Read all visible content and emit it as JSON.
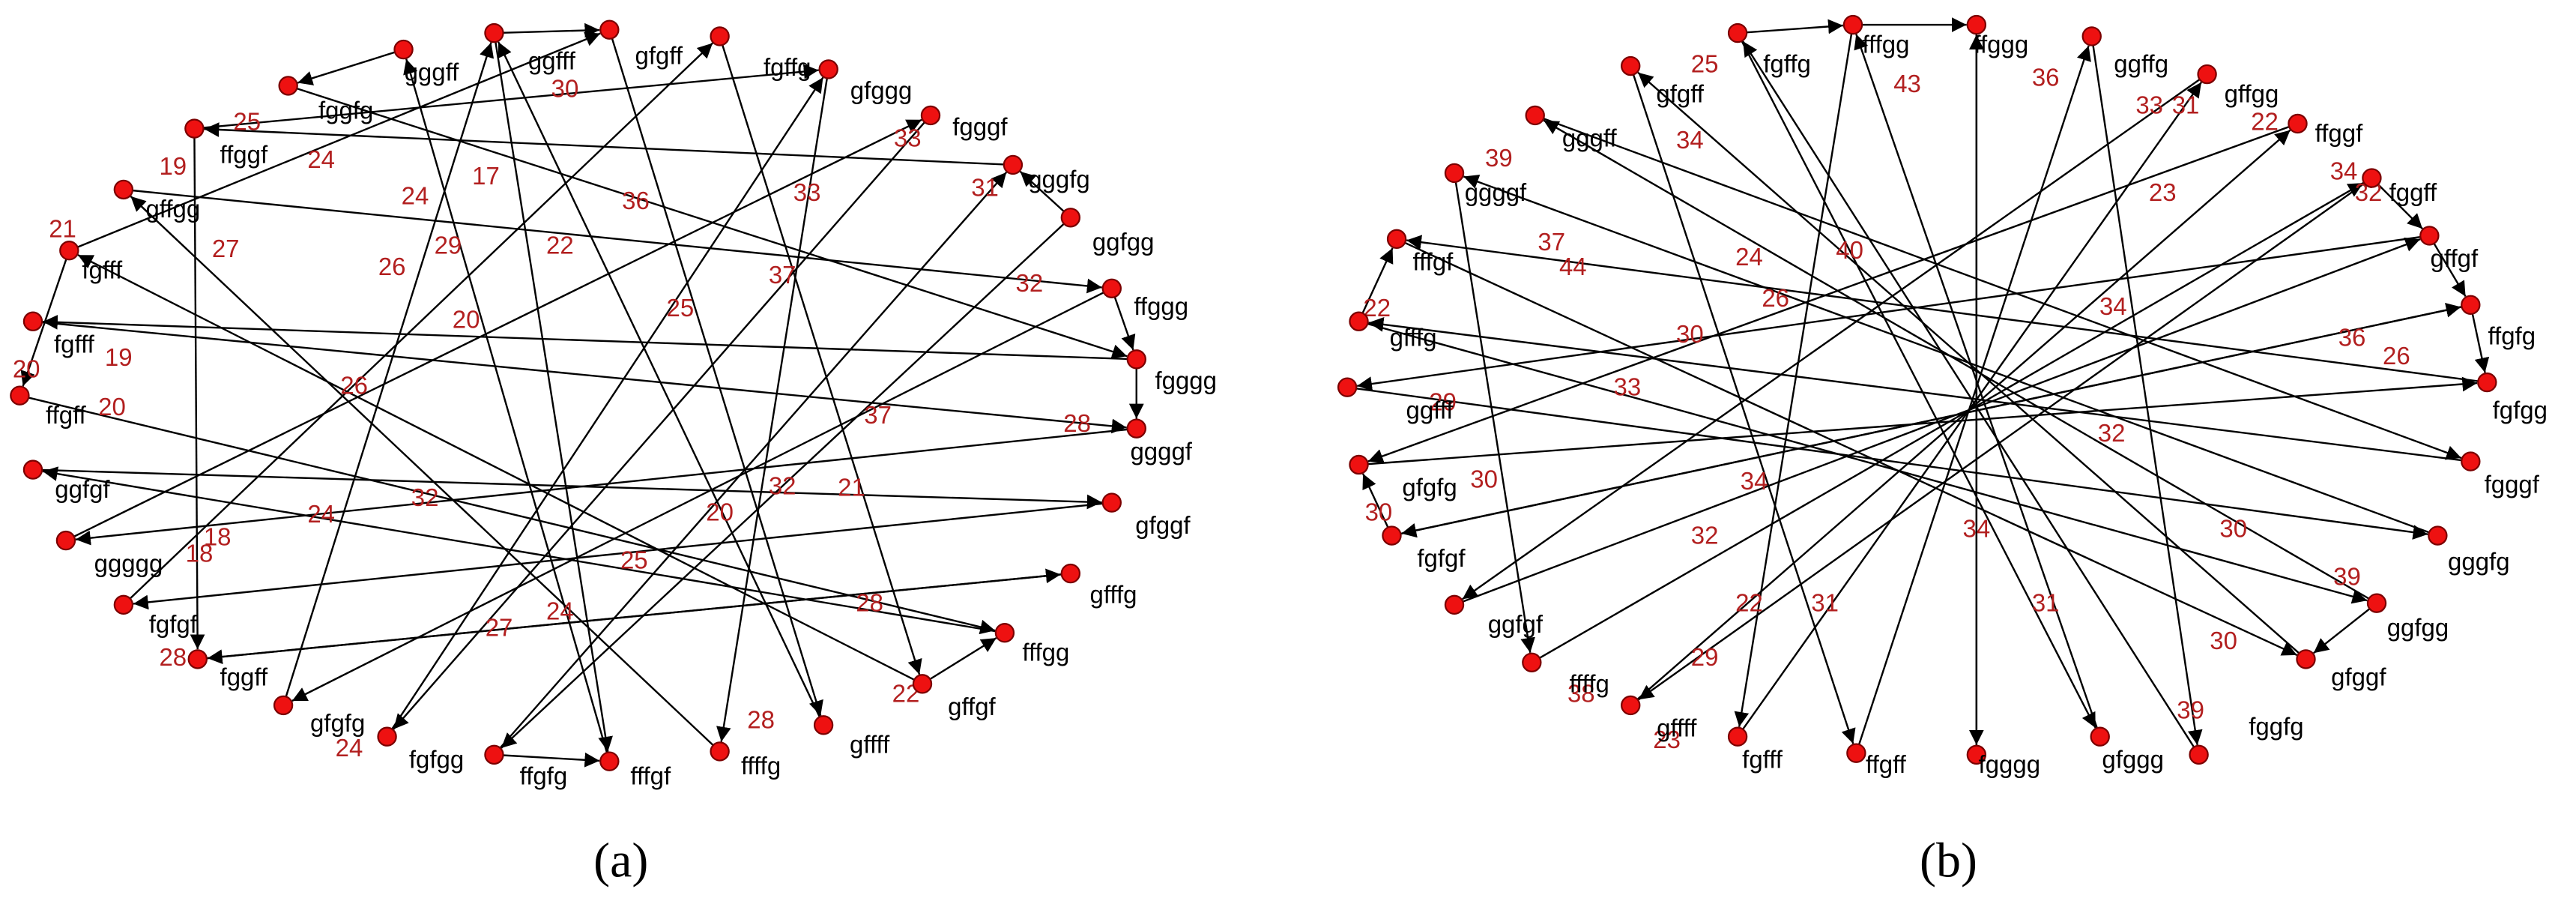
{
  "panels": [
    {
      "caption": "(a)",
      "nodes": [
        "fggfg",
        "ffggf",
        "gffgg",
        "fgfff",
        "fgfff",
        "ffgff",
        "ggfgf",
        "ggggg",
        "fgfgf",
        "fggff",
        "gfgfg",
        "fgfgg",
        "ffgfg",
        "fffgf",
        "ffffg",
        "gffff",
        "gffgf",
        "fffgg",
        "gfffg",
        "gfggf",
        "ggggf",
        "fgggg",
        "ffggg",
        "ggfgg",
        "gggfg",
        "fgggf",
        "gfggg",
        "fgffg",
        "gfgff",
        "ggfff",
        "gggff"
      ],
      "edge_labels": [
        25,
        24,
        19,
        27,
        21,
        20,
        19,
        20,
        26,
        24,
        29,
        17,
        30,
        36,
        22,
        33,
        31,
        32,
        33,
        37,
        25,
        20,
        26,
        37,
        28,
        32,
        24,
        32,
        21,
        20,
        25,
        18,
        18,
        27,
        24,
        28,
        28,
        22,
        28,
        24
      ]
    },
    {
      "caption": "(b)",
      "nodes": [
        "gggff",
        "gfgff",
        "fgffg",
        "fffgg",
        "ffggg",
        "ggffg",
        "gffgg",
        "ffggf",
        "fggff",
        "gffgf",
        "ffgfg",
        "fgfgg",
        "fgggf",
        "gggfg",
        "ggfgg",
        "gfggf",
        "fggfg",
        "gfggg",
        "fgggg",
        "ffgff",
        "fgfff",
        "gffff",
        "ffffg",
        "ggfgf",
        "fgfgf",
        "gfgfg",
        "ggfff",
        "gfffg",
        "fffgf",
        "ggggf"
      ],
      "edge_labels": [
        25,
        43,
        36,
        33,
        31,
        22,
        34,
        39,
        34,
        23,
        32,
        37,
        44,
        24,
        40,
        26,
        34,
        36,
        26,
        30,
        33,
        32,
        34,
        34,
        30,
        32,
        29,
        22,
        30,
        39,
        22,
        31,
        31,
        30,
        29,
        39,
        38,
        23,
        30
      ]
    }
  ]
}
